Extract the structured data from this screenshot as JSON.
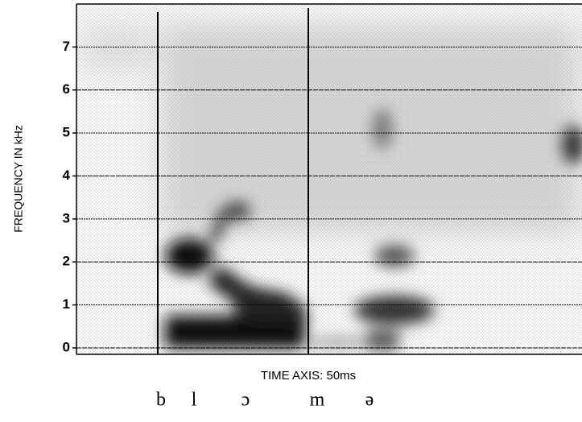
{
  "chart_data": {
    "type": "spectrogram",
    "ylabel": "FREQUENCY IN kHz",
    "xlabel": "TIME AXIS: 50ms",
    "ylim": [
      -0.15,
      8
    ],
    "yticks": [
      0,
      1,
      2,
      3,
      4,
      5,
      6,
      7
    ],
    "grid": true,
    "segments": [
      "b",
      "l",
      "ɔ",
      "m",
      "ə"
    ]
  }
}
